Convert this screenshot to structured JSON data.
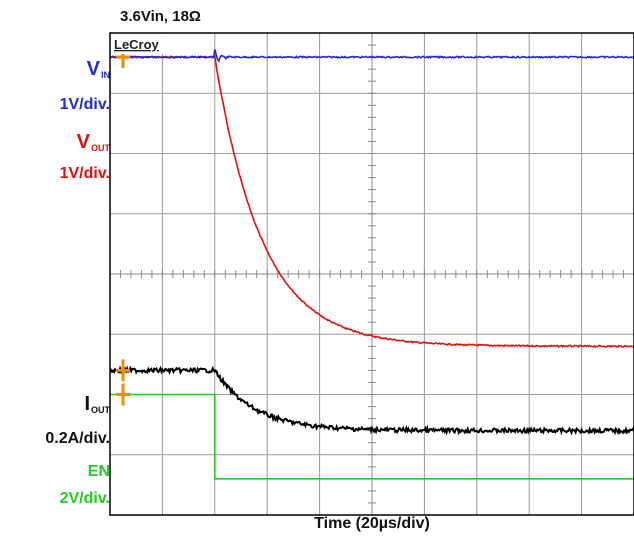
{
  "chart_data": {
    "type": "line",
    "instrument_logo": "LeCroy",
    "header_text": "3.6Vin, 18Ω",
    "xlabel": "Time (20µs/div)",
    "x_unit": "µs",
    "x_per_div": 20,
    "x_divisions": 10,
    "x_range_us": [
      0,
      200
    ],
    "y_divisions": 8,
    "grid": true,
    "load_step_time_us": 40,
    "series": [
      {
        "name": "VIN",
        "symbol": "V",
        "subscript": "IN",
        "scale": "1V/div.",
        "color": "#1f2bd6",
        "baseline_div": 0.4,
        "behavior": "constant with small ringing at load release",
        "level_div_after": 0.4
      },
      {
        "name": "VOUT",
        "symbol": "V",
        "subscript": "OUT",
        "scale": "1V/div.",
        "color": "#e01010",
        "baseline_div": 0.4,
        "behavior": "exponential decay after EN falls",
        "level_div_after": 5.2,
        "tau_us": 18
      },
      {
        "name": "IOUT",
        "symbol": "I",
        "subscript": "OUT",
        "scale": "0.2A/div.",
        "color": "#000000",
        "baseline_div": 5.6,
        "behavior": "exponential decay after EN falls",
        "level_div_after": 6.6,
        "tau_us": 15
      },
      {
        "name": "EN",
        "symbol": "EN",
        "subscript": "",
        "scale": "2V/div.",
        "color": "#22cc22",
        "baseline_div": 6.0,
        "behavior": "step down at load release",
        "level_div_after": 7.4
      }
    ]
  }
}
